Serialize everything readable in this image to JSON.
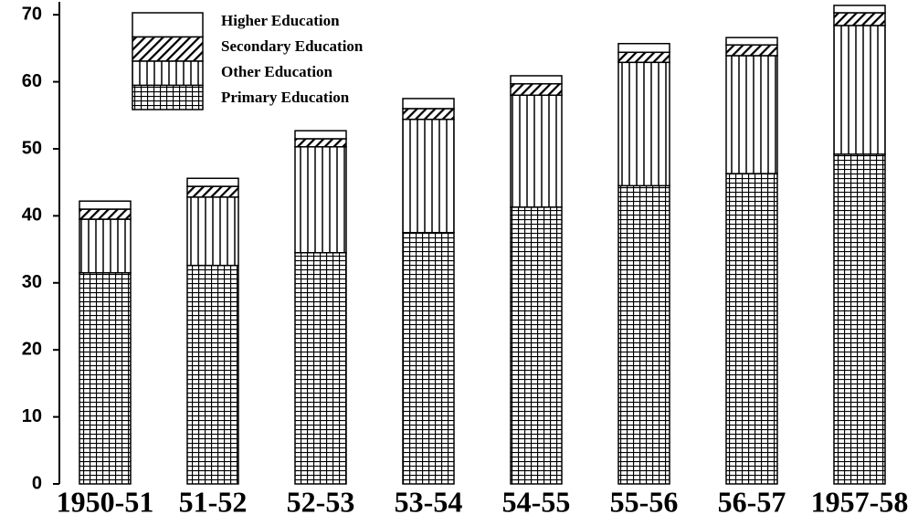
{
  "chart_data": {
    "type": "stacked_bar",
    "categories": [
      "1950-51",
      "51-52",
      "52-53",
      "53-54",
      "54-55",
      "55-56",
      "56-57",
      "1957-58"
    ],
    "series": [
      {
        "name": "Primary Education",
        "color": "#000000",
        "pattern": "grid",
        "values": [
          31.5,
          32.6,
          34.5,
          37.5,
          41.3,
          44.5,
          46.3,
          49.2
        ]
      },
      {
        "name": "Other Education",
        "color": "#000000",
        "pattern": "vertical",
        "values": [
          8,
          10.2,
          15.8,
          16.9,
          16.7,
          18.4,
          17.6,
          19.2
        ]
      },
      {
        "name": "Secondary Education",
        "color": "#000000",
        "pattern": "diagonal",
        "values": [
          1.5,
          1.6,
          1.2,
          1.6,
          1.7,
          1.5,
          1.6,
          1.9
        ]
      },
      {
        "name": "Higher Education",
        "color": "#000000",
        "pattern": "none",
        "values": [
          1.2,
          1.2,
          1.2,
          1.5,
          1.2,
          1.3,
          1.1,
          1.1
        ]
      }
    ],
    "ylim": [
      0,
      72
    ],
    "yticks": [
      0,
      10,
      20,
      30,
      40,
      50,
      60,
      70
    ],
    "legend": "top-left",
    "grid": false
  }
}
